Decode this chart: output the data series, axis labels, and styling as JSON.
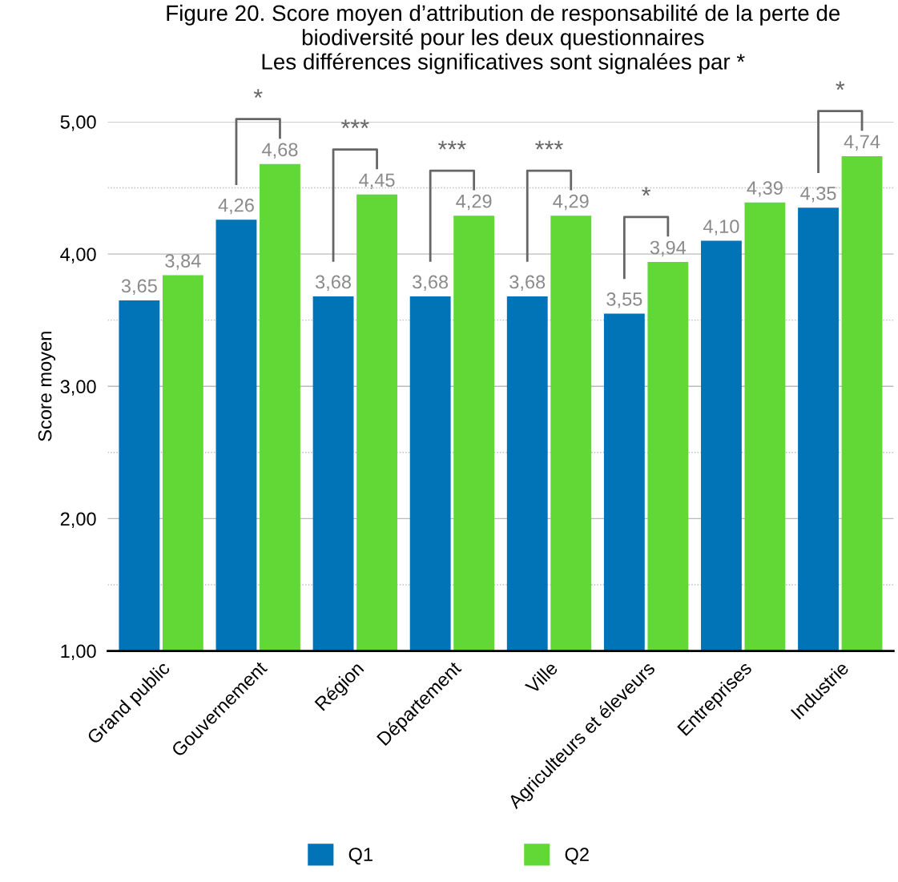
{
  "chart_data": {
    "type": "bar",
    "title": "Figure 20. Score moyen d’attribution de responsabilité de la perte de biodiversité pour les deux questionnaires\nLes différences significatives sont signalées par *",
    "ylabel": "Score moyen",
    "categories": [
      "Grand public",
      "Gouvernement",
      "Région",
      "Département",
      "Ville",
      "Agriculteurs et éleveurs",
      "Entreprises",
      "Industrie"
    ],
    "series": [
      {
        "name": "Q1",
        "color": "#0174b8",
        "values": [
          3.65,
          4.26,
          3.68,
          3.68,
          3.68,
          3.55,
          4.1,
          4.35
        ],
        "value_labels": [
          "3,65",
          "4,26",
          "3,68",
          "3,68",
          "3,68",
          "3,55",
          "4,10",
          "4,35"
        ]
      },
      {
        "name": "Q2",
        "color": "#62d836",
        "values": [
          3.84,
          4.68,
          4.45,
          4.29,
          4.29,
          3.94,
          4.39,
          4.74
        ],
        "value_labels": [
          "3,84",
          "4,68",
          "4,45",
          "4,29",
          "4,29",
          "3,94",
          "4,39",
          "4,74"
        ]
      }
    ],
    "ylim": [
      1,
      5
    ],
    "yticks": [
      {
        "value": 1,
        "label": "1,00"
      },
      {
        "value": 1.5,
        "label": null
      },
      {
        "value": 2,
        "label": "2,00"
      },
      {
        "value": 2.5,
        "label": null
      },
      {
        "value": 3,
        "label": "3,00"
      },
      {
        "value": 3.5,
        "label": null
      },
      {
        "value": 4,
        "label": "4,00"
      },
      {
        "value": 4.5,
        "label": null
      },
      {
        "value": 5,
        "label": "5,00"
      }
    ],
    "grid": "y",
    "legend": "bottom",
    "annotations": [
      {
        "text": "*",
        "x": "Gouvernement",
        "y": 4.68
      },
      {
        "text": "***",
        "x": "Région",
        "y": 4.45
      },
      {
        "text": "***",
        "x": "Département",
        "y": 4.29
      },
      {
        "text": "***",
        "x": "Ville",
        "y": 4.29
      },
      {
        "text": "*",
        "x": "Agriculteurs et éleveurs",
        "y": 3.94
      },
      {
        "text": "*",
        "x": "Industrie",
        "y": 4.74
      }
    ]
  }
}
